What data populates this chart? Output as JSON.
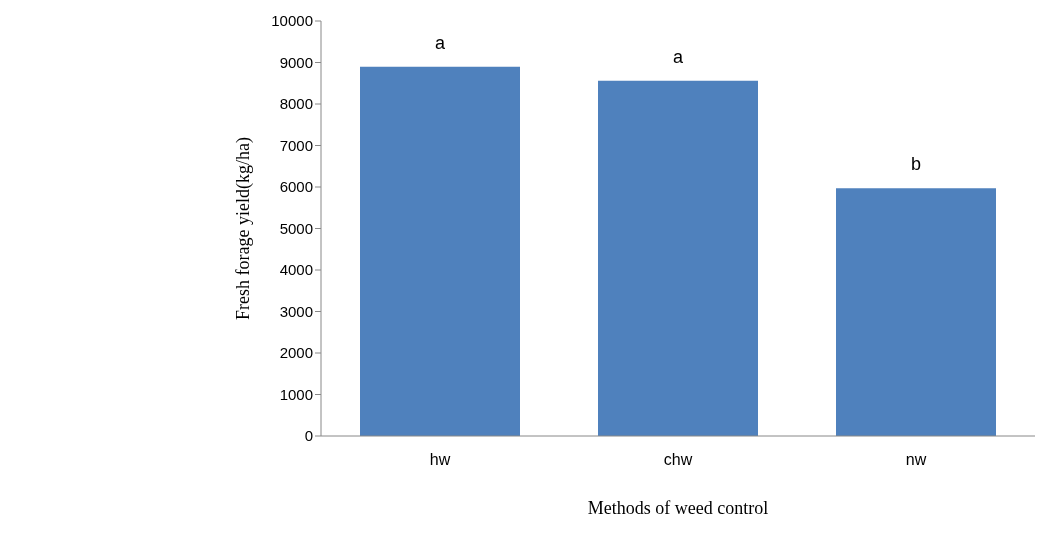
{
  "chart_data": {
    "type": "bar",
    "xlabel": "Methods of weed control",
    "ylabel": "Fresh forage yield(kg/ha)",
    "categories": [
      "hw",
      "chw",
      "nw"
    ],
    "values": [
      8900,
      8560,
      5970
    ],
    "color": "#4f81bd",
    "ylim": [
      0,
      10000
    ],
    "yticks": [
      0,
      1000,
      2000,
      3000,
      4000,
      5000,
      6000,
      7000,
      8000,
      9000,
      10000
    ],
    "grid": false,
    "legend": false,
    "annotations": [
      {
        "text": "a",
        "x": "hw",
        "y": 8900
      },
      {
        "text": "a",
        "x": "chw",
        "y": 8560
      },
      {
        "text": "b",
        "x": "nw",
        "y": 5970
      }
    ]
  }
}
